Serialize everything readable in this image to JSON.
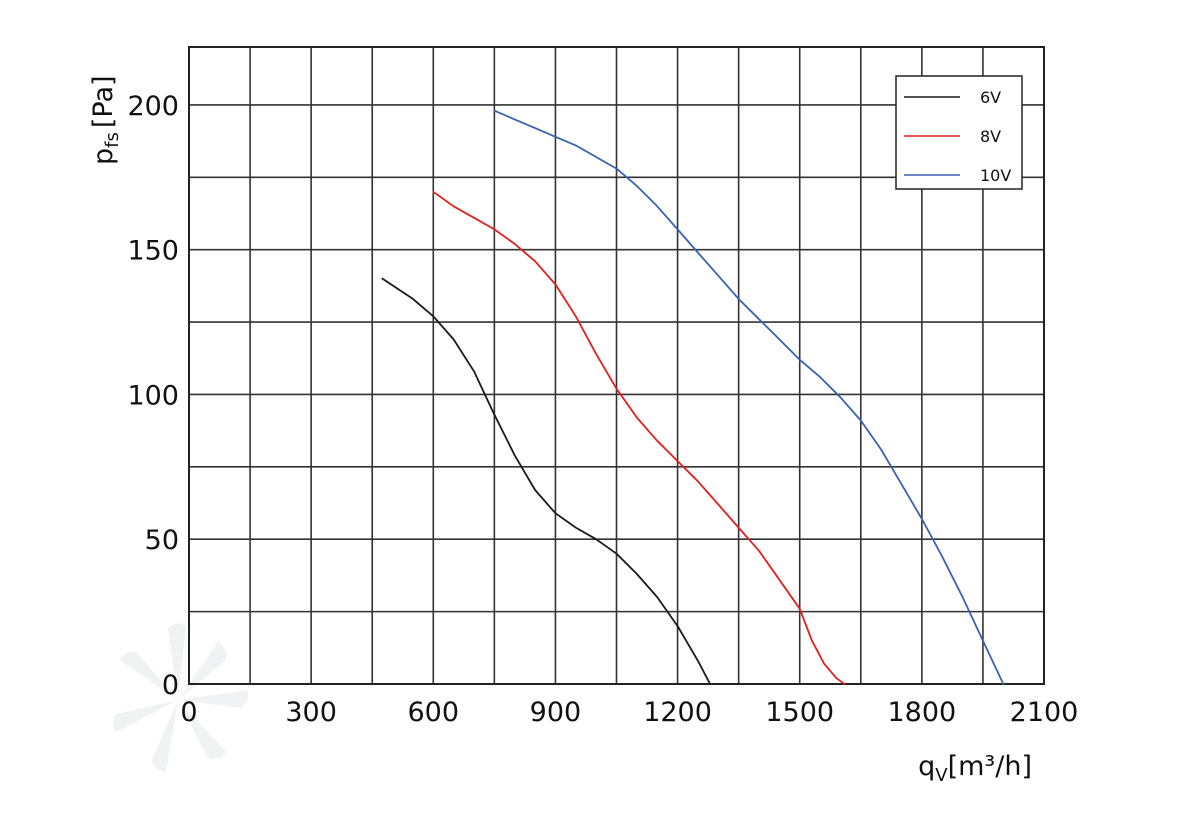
{
  "chart_data": {
    "type": "line",
    "title": "",
    "xlabel": {
      "main": "q",
      "sub": "V",
      "unit": "[m³/h]"
    },
    "ylabel": {
      "main": "p",
      "sub": "fs",
      "unit": "[Pa]"
    },
    "xlim": [
      0,
      2100
    ],
    "ylim": [
      0,
      220
    ],
    "xticks": [
      0,
      300,
      600,
      900,
      1200,
      1500,
      1800,
      2100
    ],
    "xtick_labels": [
      "0",
      "300",
      "600",
      "900",
      "1200",
      "1500",
      "1800",
      "2100"
    ],
    "yticks": [
      0,
      50,
      100,
      150,
      200
    ],
    "ytick_labels": [
      "0",
      "50",
      "100",
      "150",
      "200"
    ],
    "grid": true,
    "legend_position": "top-right",
    "series": [
      {
        "name": "6V",
        "color": "#1a1a1a",
        "x": [
          475,
          550,
          600,
          650,
          700,
          750,
          800,
          850,
          900,
          950,
          1000,
          1050,
          1100,
          1150,
          1200,
          1250,
          1280
        ],
        "y": [
          140,
          133,
          127,
          119,
          108,
          93,
          79,
          67,
          59,
          54,
          50,
          45,
          38,
          30,
          20,
          8,
          0
        ]
      },
      {
        "name": "8V",
        "color": "#e02020",
        "x": [
          600,
          650,
          700,
          750,
          800,
          850,
          900,
          950,
          1000,
          1050,
          1100,
          1150,
          1200,
          1250,
          1300,
          1350,
          1400,
          1450,
          1500,
          1530,
          1560,
          1590,
          1610
        ],
        "y": [
          170,
          165,
          161,
          157,
          152,
          146,
          138,
          127,
          114,
          102,
          92,
          84,
          77,
          70,
          62,
          54,
          46,
          36,
          26,
          15,
          7,
          2,
          0
        ]
      },
      {
        "name": "10V",
        "color": "#3a62b0",
        "x": [
          750,
          800,
          850,
          900,
          950,
          1000,
          1050,
          1100,
          1150,
          1200,
          1250,
          1300,
          1350,
          1400,
          1450,
          1500,
          1550,
          1600,
          1650,
          1700,
          1750,
          1800,
          1850,
          1900,
          1950,
          2000
        ],
        "y": [
          198,
          195,
          192,
          189,
          186,
          182,
          178,
          172,
          165,
          157,
          149,
          141,
          133,
          126,
          119,
          112,
          106,
          99,
          91,
          81,
          69,
          57,
          44,
          30,
          15,
          0
        ]
      }
    ]
  }
}
